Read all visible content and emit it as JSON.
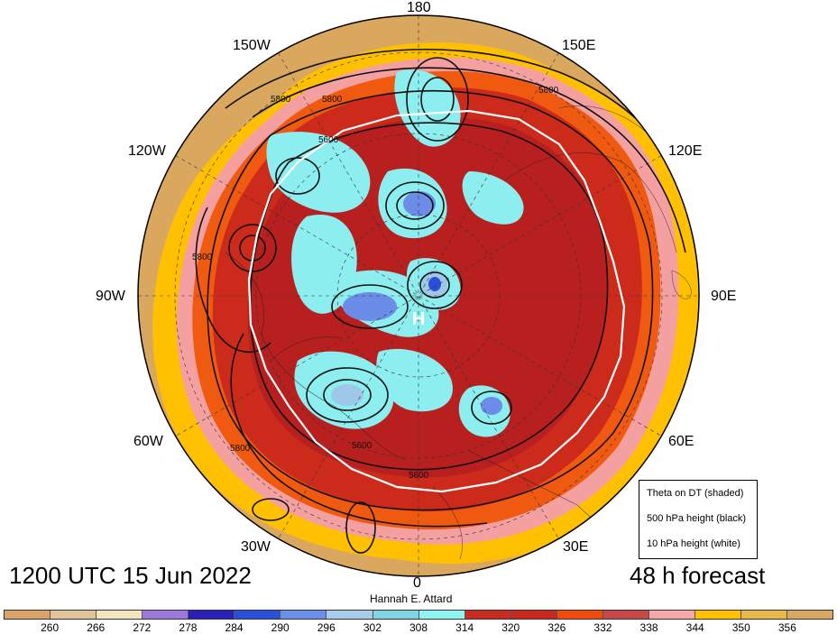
{
  "map": {
    "projection": "north-polar-stereographic",
    "meridian_labels": {
      "deg180": "180",
      "w150": "150W",
      "e150": "150E",
      "w120": "120W",
      "e120": "120E",
      "w90": "90W",
      "e90": "90E",
      "w60": "60W",
      "e60": "60E",
      "w30": "30W",
      "e30": "30E",
      "deg0": "0"
    },
    "contour_labels": [
      "5800",
      "5800",
      "5800",
      "5600",
      "5800",
      "5800",
      "5600",
      "5600"
    ],
    "high_marker": "H",
    "colors": {
      "warm_outer": "#d9a85e",
      "yellow": "#ffc000",
      "pink": "#f4a0a0",
      "orange": "#f05a10",
      "red": "#cc2a1a",
      "dark_red": "#b81f1f",
      "cyan": "#8ceeee",
      "light_blue": "#9fc7e8",
      "blue": "#6b8de8"
    }
  },
  "title": {
    "datetime": "1200 UTC 15 Jun 2022",
    "forecast": "48 h forecast",
    "author": "Hannah E. Attard"
  },
  "legend": {
    "items": [
      "Theta on DT (shaded)",
      "500 hPa height (black)",
      "10 hPa height (white)"
    ]
  },
  "colorbar": {
    "ticks": [
      "260",
      "266",
      "272",
      "278",
      "284",
      "290",
      "296",
      "302",
      "308",
      "314",
      "320",
      "326",
      "332",
      "338",
      "344",
      "350",
      "356"
    ],
    "colors": [
      "#d9a36a",
      "#e1c49a",
      "#f3e6bf",
      "#9e78dd",
      "#2a1fb8",
      "#2a4fd8",
      "#6a90ea",
      "#a8cde8",
      "#7fd6e0",
      "#8ff4f2",
      "#c82b22",
      "#c8281c",
      "#f04a0c",
      "#c84848",
      "#f4aaaa",
      "#ffc000",
      "#e8b84a",
      "#d9a862"
    ]
  }
}
